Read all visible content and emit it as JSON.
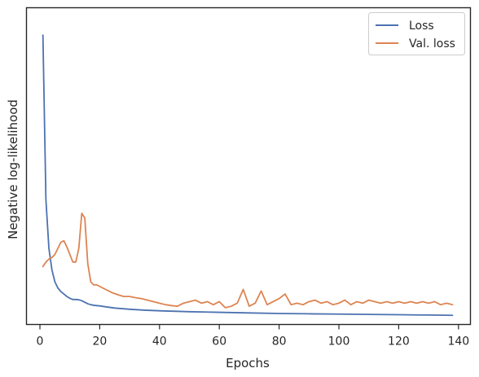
{
  "chart_data": {
    "type": "line",
    "title": "",
    "xlabel": "Epochs",
    "ylabel": "Negative log-likelihood",
    "xlim": [
      -4.5,
      144
    ],
    "ylim": [
      -0.2,
      10.2
    ],
    "x_ticks": [
      0,
      20,
      40,
      60,
      80,
      100,
      120,
      140
    ],
    "y_ticks_visible": false,
    "grid": false,
    "legend": "top-right",
    "series": [
      {
        "name": "Loss",
        "color": "#4c72b0",
        "x": [
          1,
          2,
          3,
          4,
          5,
          6,
          7,
          8,
          9,
          10,
          11,
          12,
          13,
          14,
          15,
          16,
          17,
          18,
          20,
          22,
          25,
          30,
          35,
          40,
          50,
          60,
          70,
          80,
          90,
          100,
          110,
          120,
          130,
          138
        ],
        "y": [
          9.3,
          3.9,
          2.3,
          1.6,
          1.2,
          1.0,
          0.88,
          0.8,
          0.72,
          0.66,
          0.62,
          0.62,
          0.61,
          0.58,
          0.53,
          0.48,
          0.45,
          0.43,
          0.41,
          0.38,
          0.34,
          0.3,
          0.27,
          0.25,
          0.22,
          0.2,
          0.18,
          0.16,
          0.15,
          0.14,
          0.13,
          0.12,
          0.11,
          0.1
        ]
      },
      {
        "name": "Val. loss",
        "color": "#dd8452",
        "x": [
          1,
          2,
          3,
          4,
          5,
          6,
          7,
          8,
          9,
          10,
          11,
          12,
          13,
          14,
          15,
          16,
          17,
          18,
          19,
          20,
          22,
          24,
          26,
          28,
          30,
          32,
          34,
          36,
          38,
          40,
          42,
          44,
          46,
          48,
          50,
          52,
          54,
          56,
          58,
          60,
          62,
          64,
          66,
          68,
          70,
          72,
          74,
          76,
          78,
          80,
          82,
          84,
          86,
          88,
          90,
          92,
          94,
          96,
          98,
          100,
          102,
          104,
          106,
          108,
          110,
          112,
          114,
          116,
          118,
          120,
          122,
          124,
          126,
          128,
          130,
          132,
          134,
          136,
          138
        ],
        "y": [
          1.7,
          1.85,
          1.95,
          2.0,
          2.1,
          2.3,
          2.5,
          2.55,
          2.35,
          2.1,
          1.85,
          1.85,
          2.3,
          3.45,
          3.3,
          1.8,
          1.2,
          1.1,
          1.1,
          1.05,
          0.95,
          0.85,
          0.78,
          0.72,
          0.72,
          0.68,
          0.65,
          0.6,
          0.55,
          0.5,
          0.45,
          0.42,
          0.4,
          0.5,
          0.55,
          0.6,
          0.5,
          0.55,
          0.45,
          0.55,
          0.35,
          0.4,
          0.5,
          0.95,
          0.4,
          0.5,
          0.9,
          0.45,
          0.55,
          0.65,
          0.8,
          0.45,
          0.5,
          0.45,
          0.55,
          0.6,
          0.5,
          0.55,
          0.45,
          0.5,
          0.6,
          0.45,
          0.55,
          0.5,
          0.6,
          0.55,
          0.5,
          0.55,
          0.5,
          0.55,
          0.5,
          0.55,
          0.5,
          0.55,
          0.5,
          0.55,
          0.45,
          0.5,
          0.45
        ]
      }
    ]
  }
}
